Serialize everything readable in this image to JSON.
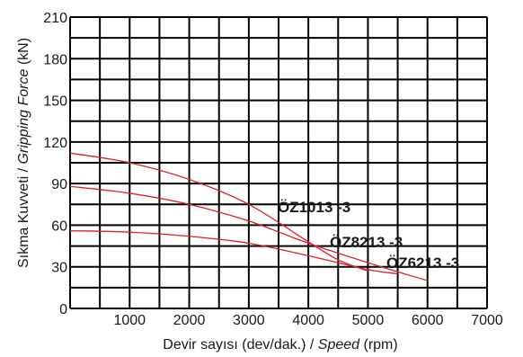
{
  "chart_data": {
    "type": "line",
    "xlabel_prefix": "Devir sayısı (dev/dak.) / ",
    "xlabel_italic": "Speed",
    "xlabel_suffix": " (rpm)",
    "ylabel_prefix": "Sıkma Kuvveti / ",
    "ylabel_italic": "Gripping Force",
    "ylabel_suffix": " (kN)",
    "xlim": [
      0,
      7000
    ],
    "ylim": [
      0,
      210
    ],
    "x_ticks": [
      1000,
      2000,
      3000,
      4000,
      5000,
      6000,
      7000
    ],
    "y_ticks": [
      0,
      30,
      60,
      90,
      120,
      150,
      180,
      210
    ],
    "grid_step_x": 500,
    "grid_step_y": 15,
    "grid": true,
    "line_color": "#e0202a",
    "series": [
      {
        "name": "ÖZ1013 -3",
        "x": [
          0,
          1000,
          2000,
          3000,
          4000,
          4500,
          5000
        ],
        "y": [
          112,
          105,
          93,
          75,
          48,
          35,
          27
        ]
      },
      {
        "name": "ÖZ8213 -3",
        "x": [
          0,
          1000,
          2000,
          3000,
          4000,
          5000,
          6000
        ],
        "y": [
          88,
          83,
          75,
          63,
          47,
          33,
          20
        ]
      },
      {
        "name": "ÖZ6213 -3",
        "x": [
          0,
          1000,
          2000,
          3000,
          4000,
          5000,
          5500
        ],
        "y": [
          56,
          55,
          52,
          47,
          38,
          28,
          25
        ]
      }
    ]
  }
}
